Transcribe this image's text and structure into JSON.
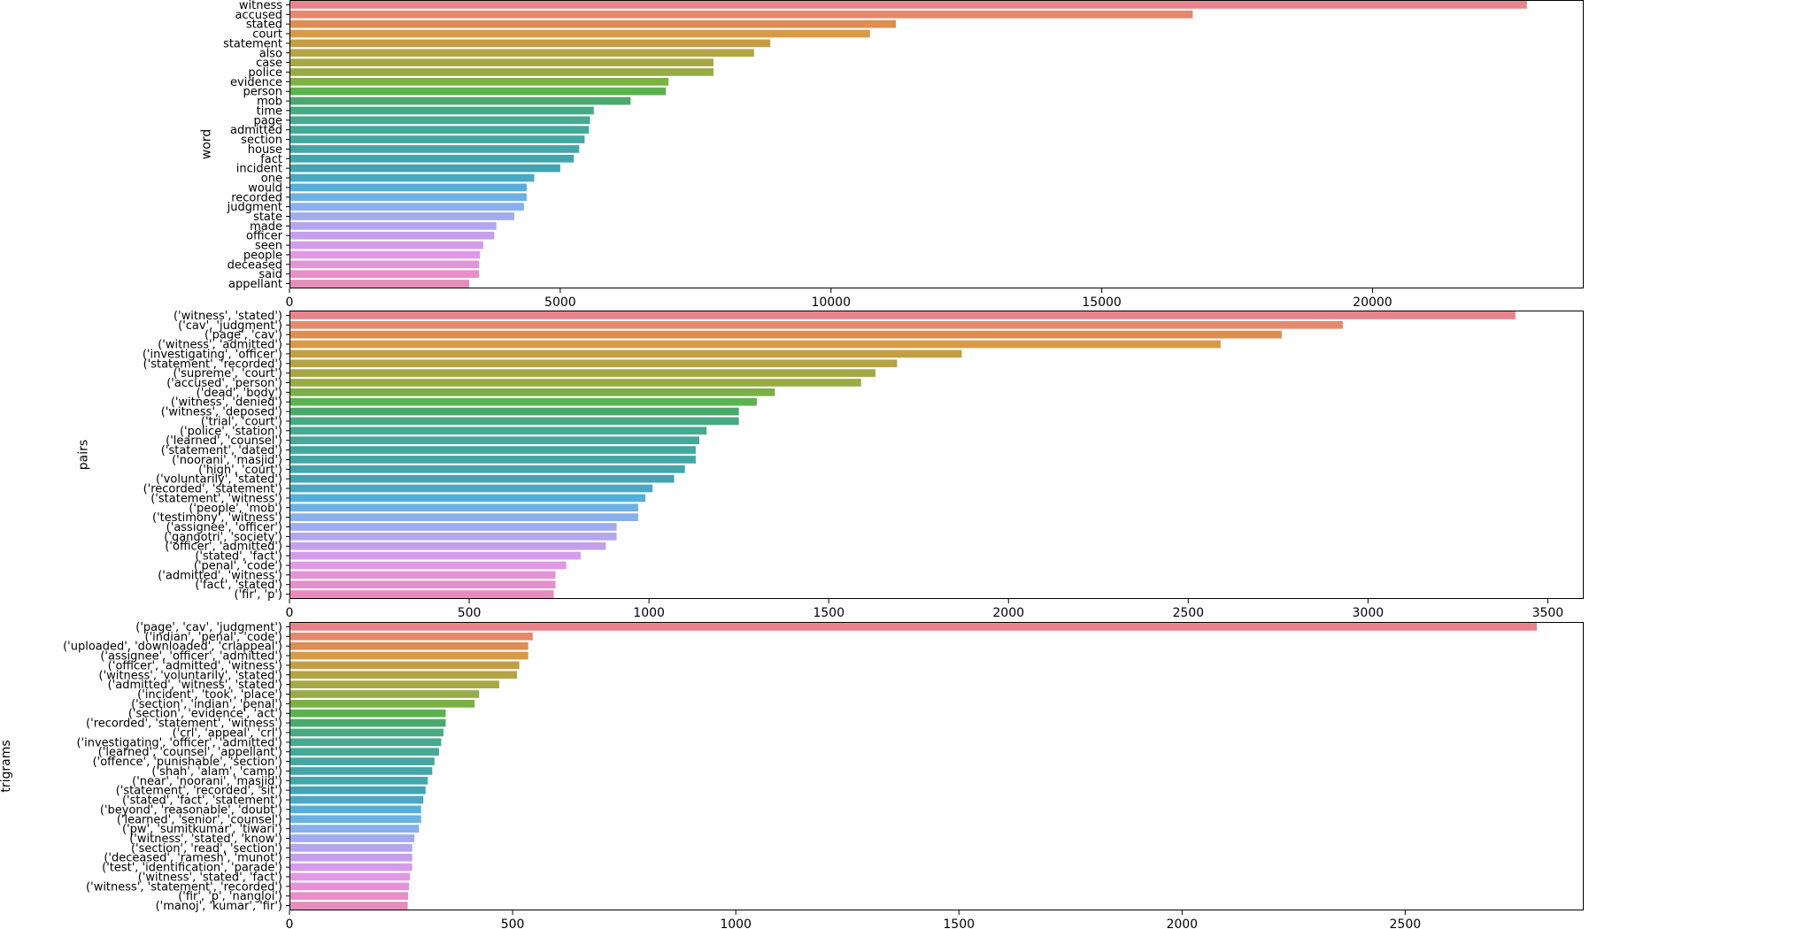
{
  "chart_data": [
    {
      "type": "bar",
      "orientation": "horizontal",
      "title": "",
      "xlabel": "",
      "ylabel": "word",
      "xlim": [
        0,
        23900
      ],
      "xticks": [
        0,
        5000,
        10000,
        15000,
        20000
      ],
      "grid": false,
      "categories": [
        "witness",
        "accused",
        "stated",
        "court",
        "statement",
        "also",
        "case",
        "police",
        "evidence",
        "person",
        "mob",
        "time",
        "page",
        "admitted",
        "section",
        "house",
        "fact",
        "incident",
        "one",
        "would",
        "recorded",
        "judgment",
        "state",
        "made",
        "officer",
        "seen",
        "people",
        "deceased",
        "said",
        "appellant"
      ],
      "values": [
        22850,
        16680,
        11200,
        10720,
        8880,
        8580,
        7830,
        7830,
        7000,
        6950,
        6300,
        5620,
        5550,
        5530,
        5450,
        5350,
        5250,
        5000,
        4520,
        4380,
        4380,
        4330,
        4150,
        3820,
        3780,
        3580,
        3520,
        3500,
        3500,
        3320
      ],
      "colors": [
        "#e8838b",
        "#e5896d",
        "#dd8e50",
        "#d89a44",
        "#c49e44",
        "#b4a444",
        "#a5a844",
        "#99ab44",
        "#7bb144",
        "#5bb34f",
        "#4ba96d",
        "#47aa85",
        "#46a990",
        "#45a898",
        "#44a8a2",
        "#44a6a8",
        "#44a6ac",
        "#43a4b2",
        "#4aa8c4",
        "#55aed9",
        "#6cb1e3",
        "#88b0ec",
        "#a0acee",
        "#b4a6ee",
        "#c4a0ec",
        "#d49cea",
        "#e198e6",
        "#e493d8",
        "#e68fca",
        "#e58cbc"
      ]
    },
    {
      "type": "bar",
      "orientation": "horizontal",
      "title": "",
      "xlabel": "",
      "ylabel": "pairs",
      "xlim": [
        0,
        3600
      ],
      "xticks": [
        0,
        500,
        1000,
        1500,
        2000,
        2500,
        3000,
        3500
      ],
      "grid": false,
      "categories": [
        "('witness', 'stated')",
        "('cav', 'judgment')",
        "('page', 'cav')",
        "('witness', 'admitted')",
        "('investigating', 'officer')",
        "('statement', 'recorded')",
        "('supreme', 'court')",
        "('accused', 'person')",
        "('dead', 'body')",
        "('witness', 'denied')",
        "('witness', 'deposed')",
        "('trial', 'court')",
        "('police', 'station')",
        "('learned', 'counsel')",
        "('statement', 'dated')",
        "('noorani', 'masjid')",
        "('high', 'court')",
        "('voluntarily', 'stated')",
        "('recorded', 'statement')",
        "('statement', 'witness')",
        "('people', 'mob')",
        "('testimony', 'witness')",
        "('assignee', 'officer')",
        "('gangotri', 'society')",
        "('officer', 'admitted')",
        "('stated', 'fact')",
        "('penal', 'code')",
        "('admitted', 'witness')",
        "('fact', 'stated')",
        "('fir', 'p')"
      ],
      "values": [
        3410,
        2930,
        2760,
        2590,
        1870,
        1690,
        1630,
        1590,
        1350,
        1300,
        1250,
        1250,
        1160,
        1140,
        1130,
        1130,
        1100,
        1070,
        1010,
        990,
        970,
        970,
        910,
        910,
        880,
        810,
        770,
        740,
        740,
        735
      ],
      "colors": [
        "#e8838b",
        "#e5896d",
        "#dd8e50",
        "#d89a44",
        "#c49e44",
        "#b4a444",
        "#a5a844",
        "#99ab44",
        "#7bb144",
        "#5bb34f",
        "#4ba96d",
        "#47aa85",
        "#46a990",
        "#45a898",
        "#44a8a2",
        "#44a6a8",
        "#44a6ac",
        "#43a4b2",
        "#4aa8c4",
        "#55aed9",
        "#6cb1e3",
        "#88b0ec",
        "#a0acee",
        "#b4a6ee",
        "#c4a0ec",
        "#d49cea",
        "#e198e6",
        "#e493d8",
        "#e68fca",
        "#e58cbc"
      ]
    },
    {
      "type": "bar",
      "orientation": "horizontal",
      "title": "",
      "xlabel": "",
      "ylabel": "trigrams",
      "xlim": [
        0,
        2900
      ],
      "xticks": [
        0,
        500,
        1000,
        1500,
        2000,
        2500
      ],
      "grid": false,
      "categories": [
        "('page', 'cav', 'judgment')",
        "('indian', 'penal', 'code')",
        "('uploaded', 'downloaded', 'crlappeal')",
        "('assignee', 'officer', 'admitted')",
        "('officer', 'admitted', 'witness')",
        "('witness', 'voluntarily', 'stated')",
        "('admitted', 'witness', 'stated')",
        "('incident', 'took', 'place')",
        "('section', 'indian', 'penal')",
        "('section', 'evidence', 'act')",
        "('recorded', 'statement', 'witness')",
        "('crl', 'appeal', 'crl')",
        "('investigating', 'officer', 'admitted')",
        "('learned', 'counsel', 'appellant')",
        "('offence', 'punishable', 'section')",
        "('shah', 'alam', 'camp')",
        "('near', 'noorani', 'masjid')",
        "('statement', 'recorded', 'sit')",
        "('stated', 'fact', 'statement')",
        "('beyond', 'reasonable', 'doubt')",
        "('learned', 'senior', 'counsel')",
        "('pw', 'sumitkumar', 'tiwari')",
        "('witness', 'stated', 'know')",
        "('section', 'read', 'section')",
        "('deceased', 'ramesh', 'munot')",
        "('test', 'identification', 'parade')",
        "('witness', 'stated', 'fact')",
        "('witness', 'statement', 'recorded')",
        "('fir', 'p', 'nangloi')",
        "('manoj', 'kumar', 'fir')"
      ],
      "values": [
        2795,
        545,
        535,
        535,
        515,
        510,
        470,
        425,
        415,
        350,
        350,
        345,
        340,
        335,
        325,
        320,
        310,
        305,
        300,
        295,
        295,
        290,
        280,
        275,
        275,
        275,
        270,
        268,
        266,
        265
      ],
      "colors": [
        "#e8838b",
        "#e5896d",
        "#dd8e50",
        "#d89a44",
        "#c49e44",
        "#b4a444",
        "#a5a844",
        "#99ab44",
        "#7bb144",
        "#5bb34f",
        "#4ba96d",
        "#47aa85",
        "#46a990",
        "#45a898",
        "#44a8a2",
        "#44a6a8",
        "#44a6ac",
        "#43a4b2",
        "#4aa8c4",
        "#55aed9",
        "#6cb1e3",
        "#88b0ec",
        "#a0acee",
        "#b4a6ee",
        "#c4a0ec",
        "#d49cea",
        "#e198e6",
        "#e493d8",
        "#e68fca",
        "#e58cbc"
      ]
    }
  ]
}
